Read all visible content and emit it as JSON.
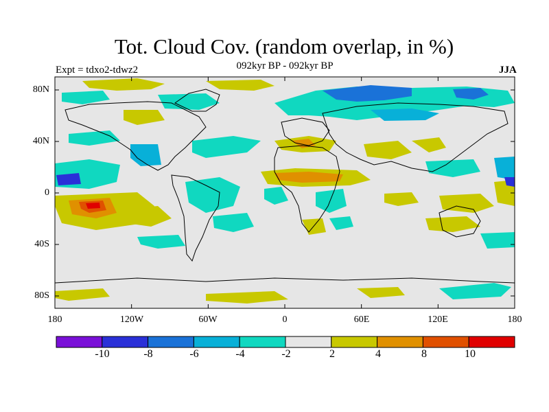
{
  "header": {
    "title": "Tot. Cloud Cov. (random overlap, in %)",
    "subtitle": "092kyr BP - 092kyr BP",
    "experiment": "Expt = tdxo2-tdwz2",
    "season": "JJA"
  },
  "map": {
    "lat_ticks": [
      "80N",
      "40N",
      "0",
      "40S",
      "80S"
    ],
    "lon_ticks": [
      "180",
      "120W",
      "60W",
      "0",
      "60E",
      "120E",
      "180"
    ],
    "lon_range": [
      -180,
      180
    ],
    "lat_range": [
      -90,
      90
    ],
    "background_color": "#e6e6e6"
  },
  "colorbar": {
    "tick_labels": [
      "-10",
      "-8",
      "-6",
      "-4",
      "-2",
      "2",
      "4",
      "8",
      "10"
    ],
    "colors": [
      "#7a10d8",
      "#2a30d8",
      "#1a72d8",
      "#08b0d8",
      "#10d8c0",
      "#e6e6e6",
      "#c8c800",
      "#e09000",
      "#e05000",
      "#e00000"
    ]
  }
}
